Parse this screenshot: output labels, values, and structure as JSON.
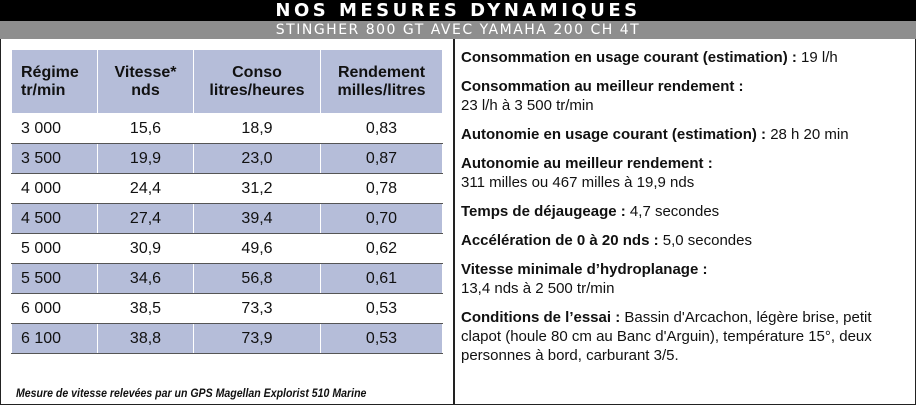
{
  "header": {
    "title": "NOS MESURES DYNAMIQUES",
    "subtitle": "STINGHER 800 GT AVEC YAMAHA 200 CH 4T"
  },
  "table": {
    "columns": [
      "Régime tr/min",
      "Vitesse* nds",
      "Conso litres/heures",
      "Rendement milles/litres"
    ],
    "rows": [
      [
        "3 000",
        "15,6",
        "18,9",
        "0,83"
      ],
      [
        "3 500",
        "19,9",
        "23,0",
        "0,87"
      ],
      [
        "4 000",
        "24,4",
        "31,2",
        "0,78"
      ],
      [
        "4 500",
        "27,4",
        "39,4",
        "0,70"
      ],
      [
        "5 000",
        "30,9",
        "49,6",
        "0,62"
      ],
      [
        "5 500",
        "34,6",
        "56,8",
        "0,61"
      ],
      [
        "6 000",
        "38,5",
        "73,3",
        "0,53"
      ],
      [
        "6 100",
        "38,8",
        "73,9",
        "0,53"
      ]
    ],
    "footnote": "Mesure de vitesse relevées par un GPS Magellan Explorist 510 Marine"
  },
  "info": [
    {
      "label": "Consommation en usage courant (estimation) :",
      "value": " 19 l/h"
    },
    {
      "label": "Consommation au meilleur rendement :",
      "value": "23 l/h à 3 500 tr/min"
    },
    {
      "label": "Autonomie en usage courant (estimation)  :",
      "value": " 28 h 20 min"
    },
    {
      "label": "Autonomie au meilleur rendement :",
      "value": "311 milles ou 467 milles à 19,9 nds"
    },
    {
      "label": "Temps de déjaugeage :",
      "value": " 4,7 secondes"
    },
    {
      "label": "Accélération de 0 à 20 nds :",
      "value": " 5,0 secondes"
    },
    {
      "label": "Vitesse minimale d’hydroplanage :",
      "value": "13,4 nds à 2 500 tr/min"
    },
    {
      "label": "Conditions de l’essai :",
      "value": " Bassin d'Arcachon, légère brise, petit clapot (houle 80 cm au Banc d'Arguin), température 15°, deux personnes à bord, carburant 3/5."
    }
  ]
}
